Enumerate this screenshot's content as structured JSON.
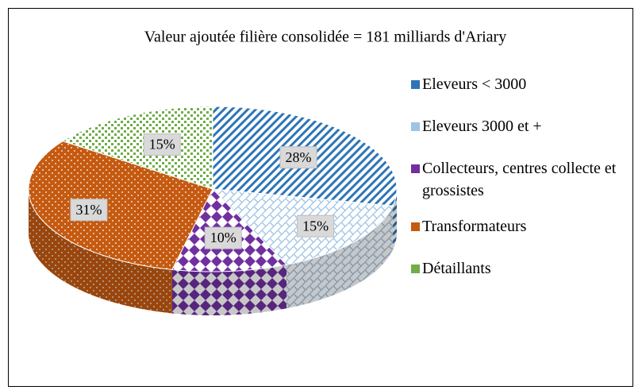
{
  "chart_data": {
    "type": "pie3d",
    "title": "Valeur ajoutée filière consolidée = 181 milliards d'Ariary",
    "categories": [
      "Eleveurs < 3000",
      "Eleveurs 3000 et +",
      "Collecteurs, centres collecte et grossistes",
      "Transformateurs",
      "Détaillants"
    ],
    "values": [
      28,
      15,
      10,
      31,
      15
    ],
    "value_labels": [
      "28%",
      "15%",
      "10%",
      "31%",
      "15%"
    ],
    "colors": [
      "#2e75b6",
      "#9dc3e6",
      "#7030a0",
      "#c55a11",
      "#70ad47"
    ],
    "legend": "right"
  }
}
